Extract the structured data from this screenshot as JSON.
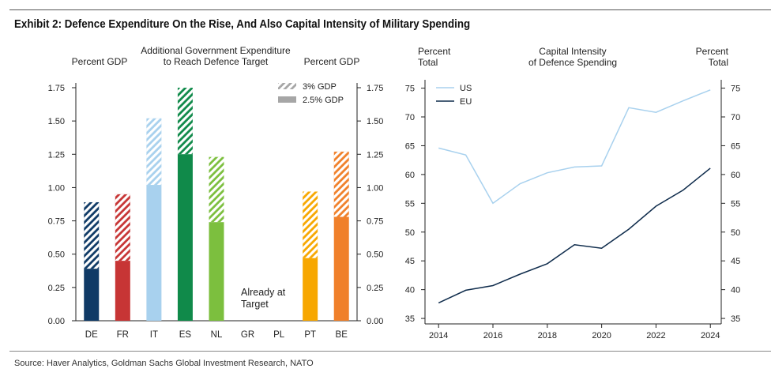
{
  "exhibit_title": "Exhibit 2: Defence Expenditure On the Rise, And Also Capital Intensity of Military Spending",
  "source": "Source: Haver Analytics, Goldman Sachs Global Investment Research, NATO",
  "colors": {
    "DE": "#0f3a66",
    "FR": "#c73535",
    "IT": "#a8d1ee",
    "ES": "#108a4a",
    "NL": "#7cbf3e",
    "PT": "#f7a700",
    "BE": "#f0802a",
    "US": "#a8d1ee",
    "EU": "#0f2c4c",
    "legend_gray": "#a6a6a6"
  },
  "left_chart": {
    "title_line1": "Additional Government Expenditure",
    "title_line2": "to Reach Defence Target",
    "left_unit": "Percent GDP",
    "right_unit": "Percent GDP",
    "legend_3pct": "3% GDP",
    "legend_25pct": "2.5% GDP",
    "annotation_line1": "Already at",
    "annotation_line2": "Target"
  },
  "right_chart": {
    "title_line1": "Capital Intensity",
    "title_line2": "of Defence Spending",
    "left_unit_line1": "Percent",
    "left_unit_line2": "Total",
    "right_unit_line1": "Percent",
    "right_unit_line2": "Total"
  },
  "chart_data": [
    {
      "type": "bar",
      "title": "Additional Government Expenditure to Reach Defence Target",
      "ylabel": "Percent GDP",
      "ylim": [
        0,
        1.75
      ],
      "yticks": [
        "0.00",
        "0.25",
        "0.50",
        "0.75",
        "1.00",
        "1.25",
        "1.50",
        "1.75"
      ],
      "categories": [
        "DE",
        "FR",
        "IT",
        "ES",
        "NL",
        "GR",
        "PL",
        "PT",
        "BE"
      ],
      "series": [
        {
          "name": "2.5% GDP",
          "values": [
            0.39,
            0.45,
            1.02,
            1.25,
            0.74,
            0,
            0,
            0.47,
            0.78
          ]
        },
        {
          "name": "3% GDP",
          "values": [
            0.89,
            0.95,
            1.52,
            1.75,
            1.23,
            0,
            0,
            0.97,
            1.27
          ]
        }
      ],
      "legend": "top-right",
      "annotation": "Already at Target"
    },
    {
      "type": "line",
      "title": "Capital Intensity of Defence Spending",
      "ylabel": "Percent Total",
      "ylim": [
        35,
        75
      ],
      "yticks": [
        "35",
        "40",
        "45",
        "50",
        "55",
        "60",
        "65",
        "70",
        "75"
      ],
      "xticks": [
        "2014",
        "2016",
        "2018",
        "2020",
        "2022",
        "2024"
      ],
      "x": [
        2014,
        2015,
        2016,
        2017,
        2018,
        2019,
        2020,
        2021,
        2022,
        2023,
        2024
      ],
      "series": [
        {
          "name": "US",
          "values": [
            64.6,
            63.4,
            55.0,
            58.4,
            60.3,
            61.3,
            61.5,
            71.6,
            70.8,
            72.8,
            74.7
          ]
        },
        {
          "name": "EU",
          "values": [
            37.7,
            39.9,
            40.7,
            42.7,
            44.5,
            47.8,
            47.2,
            50.5,
            54.5,
            57.3,
            61.1
          ]
        }
      ],
      "legend": "top-left"
    }
  ]
}
